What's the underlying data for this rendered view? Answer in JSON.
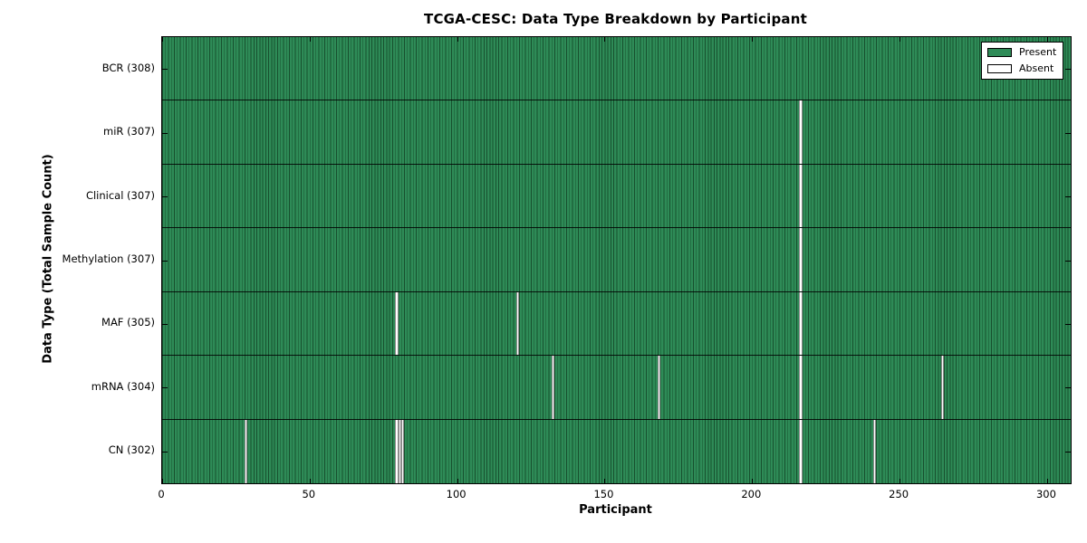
{
  "chart_data": {
    "type": "heatmap",
    "title": "TCGA-CESC: Data Type Breakdown by Participant",
    "xlabel": "Participant",
    "ylabel": "Data Type (Total Sample Count)",
    "x_ticks": [
      0,
      50,
      100,
      150,
      200,
      250,
      300
    ],
    "xlim": [
      0,
      308
    ],
    "total_participants": 308,
    "grid": false,
    "legend_position": "upper right",
    "legend": [
      {
        "label": "Present",
        "color": "#2e8b57"
      },
      {
        "label": "Absent",
        "color": "#ffffff"
      }
    ],
    "colors": {
      "present": "#2e8b57",
      "present_edge": "#17502e",
      "absent": "#ffffff",
      "row_separator": "#0a0a0a",
      "axis": "#000000"
    },
    "rows": [
      {
        "name": "BCR",
        "label": "BCR (308)",
        "total_samples": 308,
        "absent_participants": []
      },
      {
        "name": "miR",
        "label": "miR (307)",
        "total_samples": 307,
        "absent_participants": [
          216
        ]
      },
      {
        "name": "Clinical",
        "label": "Clinical (307)",
        "total_samples": 307,
        "absent_participants": [
          216
        ]
      },
      {
        "name": "Methylation",
        "label": "Methylation (307)",
        "total_samples": 307,
        "absent_participants": [
          216
        ]
      },
      {
        "name": "MAF",
        "label": "MAF (305)",
        "total_samples": 305,
        "absent_participants": [
          79,
          120,
          216
        ]
      },
      {
        "name": "mRNA",
        "label": "mRNA (304)",
        "total_samples": 304,
        "absent_participants": [
          132,
          168,
          216,
          264
        ]
      },
      {
        "name": "CN",
        "label": "CN (302)",
        "total_samples": 302,
        "absent_participants": [
          28,
          79,
          80,
          81,
          216,
          241
        ]
      }
    ]
  }
}
